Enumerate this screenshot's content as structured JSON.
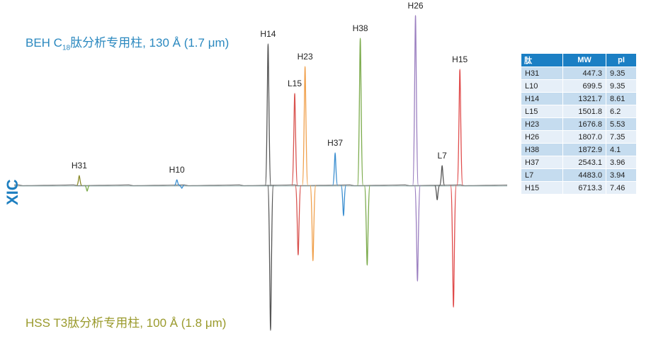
{
  "labels": {
    "top_prefix": "BEH C",
    "top_sub": "18",
    "top_suffix": "肽分析专用柱, 130 Å (1.7 μm)",
    "bottom": "HSS T3肽分析专用柱, 100 Å (1.8 μm)",
    "axis": "XIC"
  },
  "colors": {
    "top_label": "#2a88bf",
    "bottom_label": "#9a9a2c",
    "axis_label": "#1e7fc0",
    "table_header": "#1b7fc4"
  },
  "table": {
    "headers": [
      "肽",
      "MW",
      "pI"
    ],
    "rows": [
      [
        "H31",
        "447.3",
        "9.35"
      ],
      [
        "L10",
        "699.5",
        "9.35"
      ],
      [
        "H14",
        "1321.7",
        "8.61"
      ],
      [
        "L15",
        "1501.8",
        "6.2"
      ],
      [
        "H23",
        "1676.8",
        "5.53"
      ],
      [
        "H26",
        "1807.0",
        "7.35"
      ],
      [
        "H38",
        "1872.9",
        "4.1"
      ],
      [
        "H37",
        "2543.1",
        "3.96"
      ],
      [
        "L7",
        "4483.0",
        "3.94"
      ],
      [
        "H15",
        "6713.3",
        "7.46"
      ]
    ]
  },
  "chart_data": {
    "type": "line",
    "title": "",
    "xlabel": "",
    "ylabel": "XIC",
    "grid": false,
    "legend": "none",
    "series": [
      {
        "name": "BEH C18肽分析专用柱, 130 Å (1.7 μm)",
        "direction": "up",
        "peaks": [
          {
            "label": "H31",
            "t": 0.132,
            "height": 0.07,
            "color": "#8a8a2a"
          },
          {
            "label": "H10",
            "t": 0.33,
            "height": 0.04,
            "color": "#3a8ed0"
          },
          {
            "label": "H14",
            "t": 0.515,
            "height": 1.0,
            "color": "#555555"
          },
          {
            "label": "L15",
            "t": 0.569,
            "height": 0.65,
            "color": "#d9534f"
          },
          {
            "label": "H23",
            "t": 0.59,
            "height": 0.84,
            "color": "#f0a04b"
          },
          {
            "label": "H37",
            "t": 0.651,
            "height": 0.23,
            "color": "#3a8ed0"
          },
          {
            "label": "H38",
            "t": 0.702,
            "height": 1.04,
            "color": "#7aaa4a"
          },
          {
            "label": "H26",
            "t": 0.814,
            "height": 1.2,
            "color": "#9b7fc0"
          },
          {
            "label": "L7",
            "t": 0.868,
            "height": 0.14,
            "color": "#555555"
          },
          {
            "label": "H15",
            "t": 0.904,
            "height": 0.82,
            "color": "#e04b4b"
          }
        ]
      },
      {
        "name": "HSS T3肽分析专用柱, 100 Å (1.8 μm)",
        "direction": "down",
        "peaks": [
          {
            "label": "H31",
            "t": 0.148,
            "height": 0.04,
            "color": "#7aaa4a"
          },
          {
            "label": "H10",
            "t": 0.34,
            "height": 0.02,
            "color": "#3a8ed0"
          },
          {
            "label": "H14",
            "t": 0.52,
            "height": 1.0,
            "color": "#555555"
          },
          {
            "label": "L15",
            "t": 0.576,
            "height": 0.48,
            "color": "#d9534f"
          },
          {
            "label": "H23",
            "t": 0.606,
            "height": 0.52,
            "color": "#f0a04b"
          },
          {
            "label": "H37",
            "t": 0.668,
            "height": 0.21,
            "color": "#3a8ed0"
          },
          {
            "label": "H38",
            "t": 0.716,
            "height": 0.55,
            "color": "#7aaa4a"
          },
          {
            "label": "H26",
            "t": 0.818,
            "height": 0.66,
            "color": "#9b7fc0"
          },
          {
            "label": "L7",
            "t": 0.858,
            "height": 0.1,
            "color": "#555555"
          },
          {
            "label": "H15",
            "t": 0.891,
            "height": 0.84,
            "color": "#e04b4b"
          }
        ]
      }
    ]
  }
}
